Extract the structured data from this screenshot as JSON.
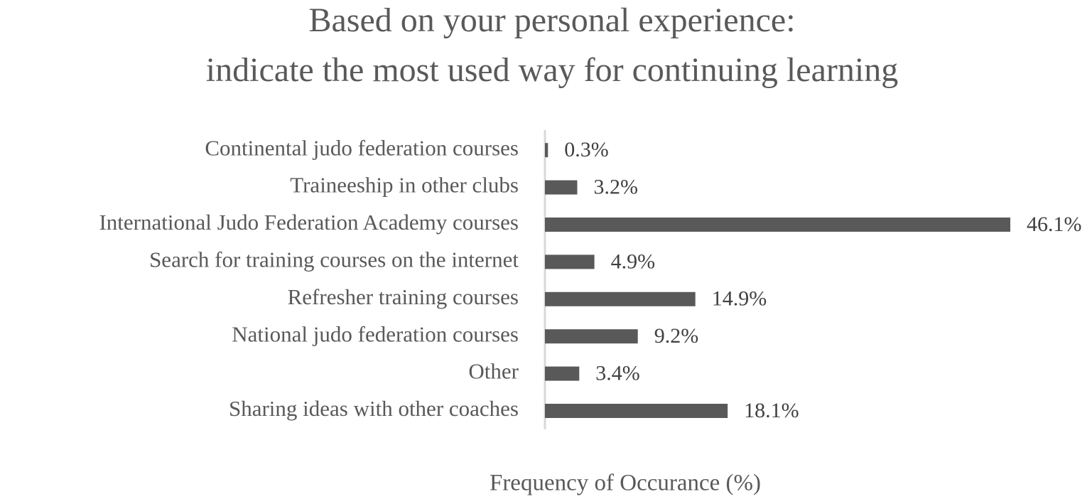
{
  "chart_data": {
    "type": "bar",
    "orientation": "horizontal",
    "title": [
      "Based on your personal experience:",
      "indicate the most used way for continuing learning"
    ],
    "xlabel": "Frequency of Occurance (%)",
    "categories": [
      "Continental judo federation courses",
      "Traineeship in other clubs",
      "International Judo Federation Academy courses",
      "Search for training courses on the internet",
      "Refresher training courses",
      "National judo federation courses",
      "Other",
      "Sharing ideas with other coaches"
    ],
    "values": [
      0.3,
      3.2,
      46.1,
      4.9,
      14.9,
      9.2,
      3.4,
      18.1
    ],
    "value_labels": [
      "0.3%",
      "3.2%",
      "46.1%",
      "4.9%",
      "14.9%",
      "9.2%",
      "3.4%",
      "18.1%"
    ],
    "color": "#595959"
  }
}
